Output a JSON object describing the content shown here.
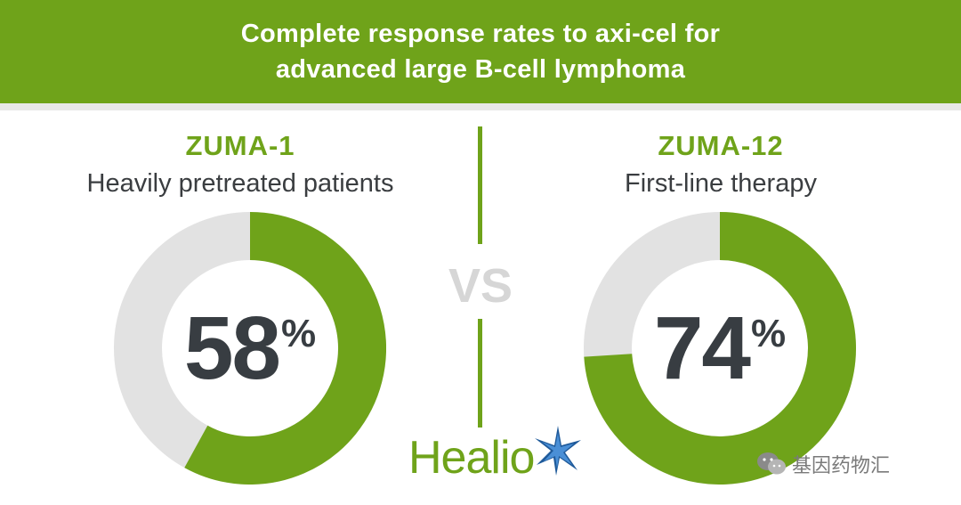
{
  "header": {
    "title_line1": "Complete response rates to axi-cel for",
    "title_line2": "advanced large B-cell lymphoma"
  },
  "chart_data": [
    {
      "type": "pie",
      "title": "ZUMA-1",
      "subtitle": "Heavily pretreated patients",
      "value": 58,
      "value_label": "58",
      "unit_label": "%",
      "max": 100,
      "colors": {
        "value": "#6fa31a",
        "remainder": "#e2e2e2"
      }
    },
    {
      "type": "pie",
      "title": "ZUMA-12",
      "subtitle": "First-line therapy",
      "value": 74,
      "value_label": "74",
      "unit_label": "%",
      "max": 100,
      "colors": {
        "value": "#6fa31a",
        "remainder": "#e2e2e2"
      }
    }
  ],
  "vs_label": "VS",
  "brand": {
    "name": "Healio",
    "icon": "star-burst-icon"
  },
  "watermark": {
    "text": "基因药物汇",
    "icon": "wechat-icon"
  },
  "colors": {
    "accent": "#6fa31a",
    "text_dark": "#383d42",
    "track": "#e2e2e2",
    "vs": "#d6d6d6"
  }
}
